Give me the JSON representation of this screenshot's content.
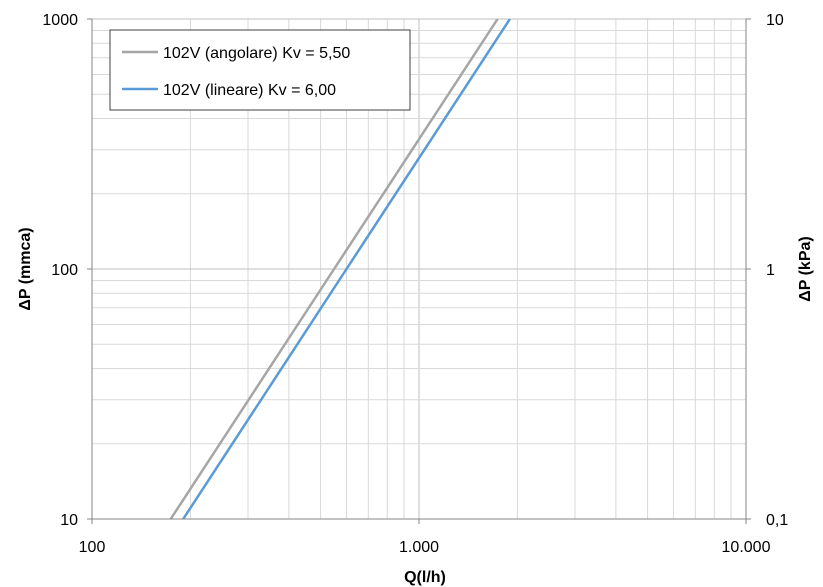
{
  "chart_data": {
    "type": "line",
    "x_scale": "log",
    "y_scale": "log",
    "xlim": [
      100,
      10000
    ],
    "ylim": [
      10,
      1000
    ],
    "y2lim": [
      0.1,
      10
    ],
    "xlabel": "Q(l/h)",
    "ylabel": "ΔP (mmca)",
    "y2label": "ΔP (kPa)",
    "x_ticks": [
      100,
      1000,
      10000
    ],
    "x_tick_labels": [
      "100",
      "1.000",
      "10.000"
    ],
    "y_ticks": [
      10,
      100,
      1000
    ],
    "y_tick_labels": [
      "10",
      "100",
      "1000"
    ],
    "y2_ticks": [
      0.1,
      1,
      10
    ],
    "y2_tick_labels": [
      "0,1",
      "1",
      "10"
    ],
    "grid": true,
    "legend_position": "top-left",
    "series": [
      {
        "name": "102V (angolare) Kv =  5,50",
        "color": "#a6a6a6",
        "x": [
          174,
          550,
          1739
        ],
        "y": [
          10,
          100,
          1000
        ]
      },
      {
        "name": "102V (lineare) Kv =  6,00",
        "color": "#5b9bd5",
        "x": [
          190,
          600,
          1897
        ],
        "y": [
          10,
          100,
          1000
        ]
      }
    ]
  }
}
